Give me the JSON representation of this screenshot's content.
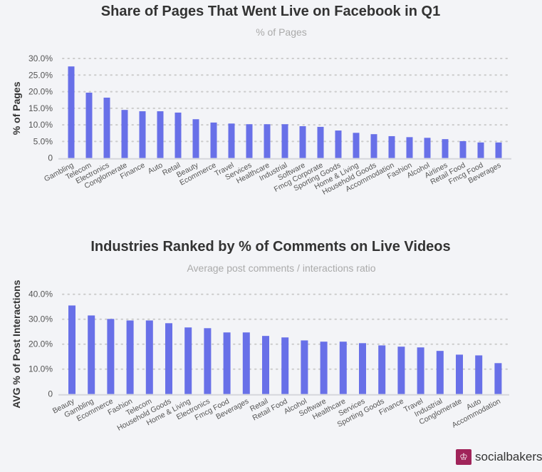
{
  "chart_data": [
    {
      "type": "bar",
      "title": "Share of Pages That Went Live on Facebook in Q1",
      "subtitle": "% of Pages",
      "ylabel": "% of Pages",
      "ylim": [
        0,
        30
      ],
      "yticks": [
        "0",
        "5.0%",
        "10.0%",
        "15.0%",
        "20.0%",
        "25.0%",
        "30.0%"
      ],
      "grid": true,
      "color": "#6870e8",
      "categories": [
        "Gambling",
        "Telecom",
        "Electronics",
        "Conglomerate",
        "Finance",
        "Auto",
        "Retail",
        "Beauty",
        "Ecommerce",
        "Travel",
        "Services",
        "Healthcare",
        "Industrial",
        "Software",
        "Fmcg Corporate",
        "Sporting Goods",
        "Home & Living",
        "Household Goods",
        "Accommodation",
        "Fashion",
        "Alcohol",
        "Airlines",
        "Retail Food",
        "Fmcg Food",
        "Beverages"
      ],
      "values": [
        27.6,
        19.7,
        18.2,
        14.5,
        14.1,
        14.1,
        13.7,
        11.7,
        10.7,
        10.4,
        10.2,
        10.2,
        10.2,
        9.6,
        9.4,
        8.3,
        7.6,
        7.2,
        6.6,
        6.3,
        6.1,
        5.7,
        5.1,
        4.7,
        4.7
      ]
    },
    {
      "type": "bar",
      "title": "Industries Ranked by % of Comments on Live Videos",
      "subtitle": "Average post comments / interactions ratio",
      "ylabel": "AVG % of Post Interactions",
      "ylim": [
        0,
        40
      ],
      "yticks": [
        "0",
        "10.0%",
        "20.0%",
        "30.0%",
        "40.0%"
      ],
      "grid": true,
      "color": "#6870e8",
      "categories": [
        "Beauty",
        "Gambling",
        "Ecommerce",
        "Fashion",
        "Telecom",
        "Household Goods",
        "Home & Living",
        "Electronics",
        "Fmcg Food",
        "Beverages",
        "Retail",
        "Retail Food",
        "Alcohol",
        "Software",
        "Healthcare",
        "Services",
        "Sporting Goods",
        "Finance",
        "Travel",
        "Industrial",
        "Conglomerate",
        "Auto",
        "Accommodation"
      ],
      "values": [
        35.5,
        31.5,
        30.1,
        29.5,
        29.5,
        28.4,
        26.7,
        26.4,
        24.7,
        24.7,
        23.3,
        22.7,
        21.5,
        21.0,
        21.0,
        20.4,
        19.5,
        19.0,
        18.7,
        17.3,
        15.8,
        15.5,
        12.4
      ]
    }
  ],
  "logo": {
    "text": "socialbakers",
    "icon": "chef-hat-icon",
    "color": "#a0245a"
  }
}
